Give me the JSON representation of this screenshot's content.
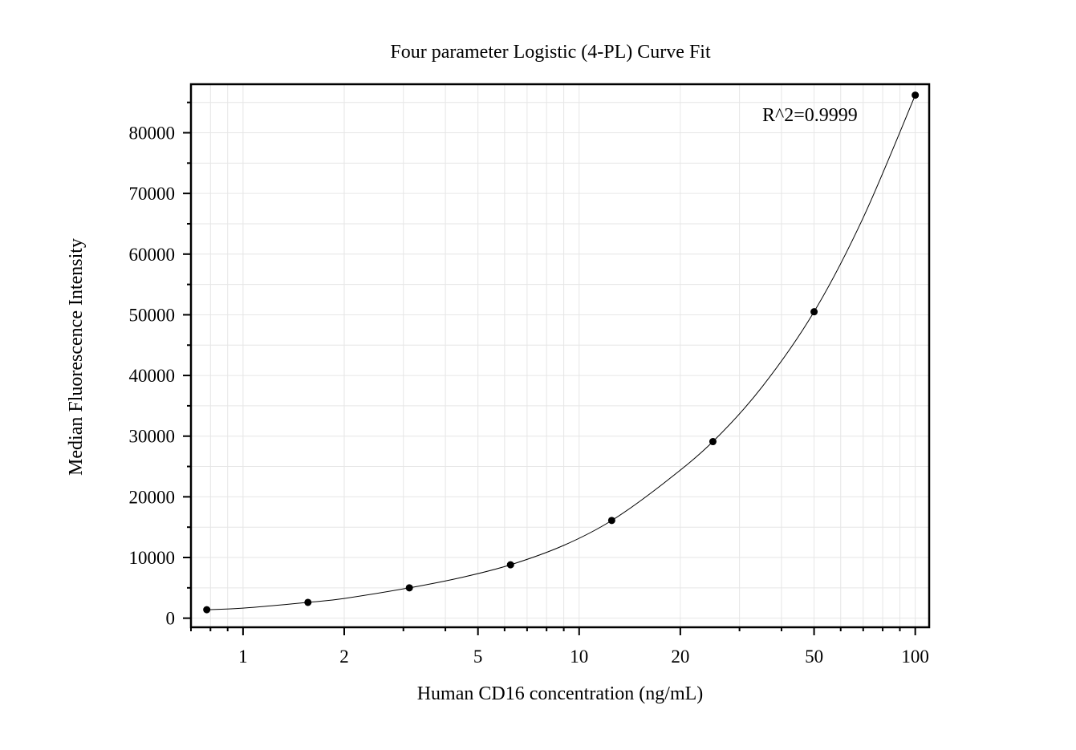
{
  "chart_data": {
    "type": "scatter",
    "title": "Four parameter Logistic (4-PL) Curve Fit",
    "xlabel": "Human CD16 concentration (ng/mL)",
    "ylabel": "Median Fluorescence Intensity",
    "x_scale": "log",
    "xlim": [
      0.7,
      110
    ],
    "ylim": [
      -1500,
      88000
    ],
    "grid": true,
    "x_ticks": [
      1,
      2,
      5,
      10,
      20,
      50,
      100
    ],
    "x_tick_labels": [
      "1",
      "2",
      "5",
      "10",
      "20",
      "50",
      "100"
    ],
    "y_ticks": [
      0,
      10000,
      20000,
      30000,
      40000,
      50000,
      60000,
      70000,
      80000
    ],
    "y_tick_labels": [
      "0",
      "10000",
      "20000",
      "30000",
      "40000",
      "50000",
      "60000",
      "70000",
      "80000"
    ],
    "series": [
      {
        "x": [
          0.78,
          1.56,
          3.125,
          6.25,
          12.5,
          25,
          50,
          100
        ],
        "y": [
          1400,
          2600,
          5000,
          8800,
          16100,
          29100,
          50500,
          86200
        ]
      }
    ],
    "fit_curve": {
      "x": [
        0.78,
        1.0,
        1.56,
        2.0,
        3.125,
        4.5,
        6.25,
        9.0,
        12.5,
        18.0,
        25,
        35,
        50,
        70,
        100
      ],
      "y": [
        1400,
        1650,
        2600,
        3250,
        5000,
        6750,
        8800,
        12000,
        16100,
        22400,
        29100,
        38100,
        50500,
        66000,
        86200
      ]
    },
    "annotation": "R^2=0.9999",
    "colors": {
      "points": "#000000",
      "curve": "#000000",
      "grid": "#e6e6e6",
      "frame": "#000000"
    }
  }
}
